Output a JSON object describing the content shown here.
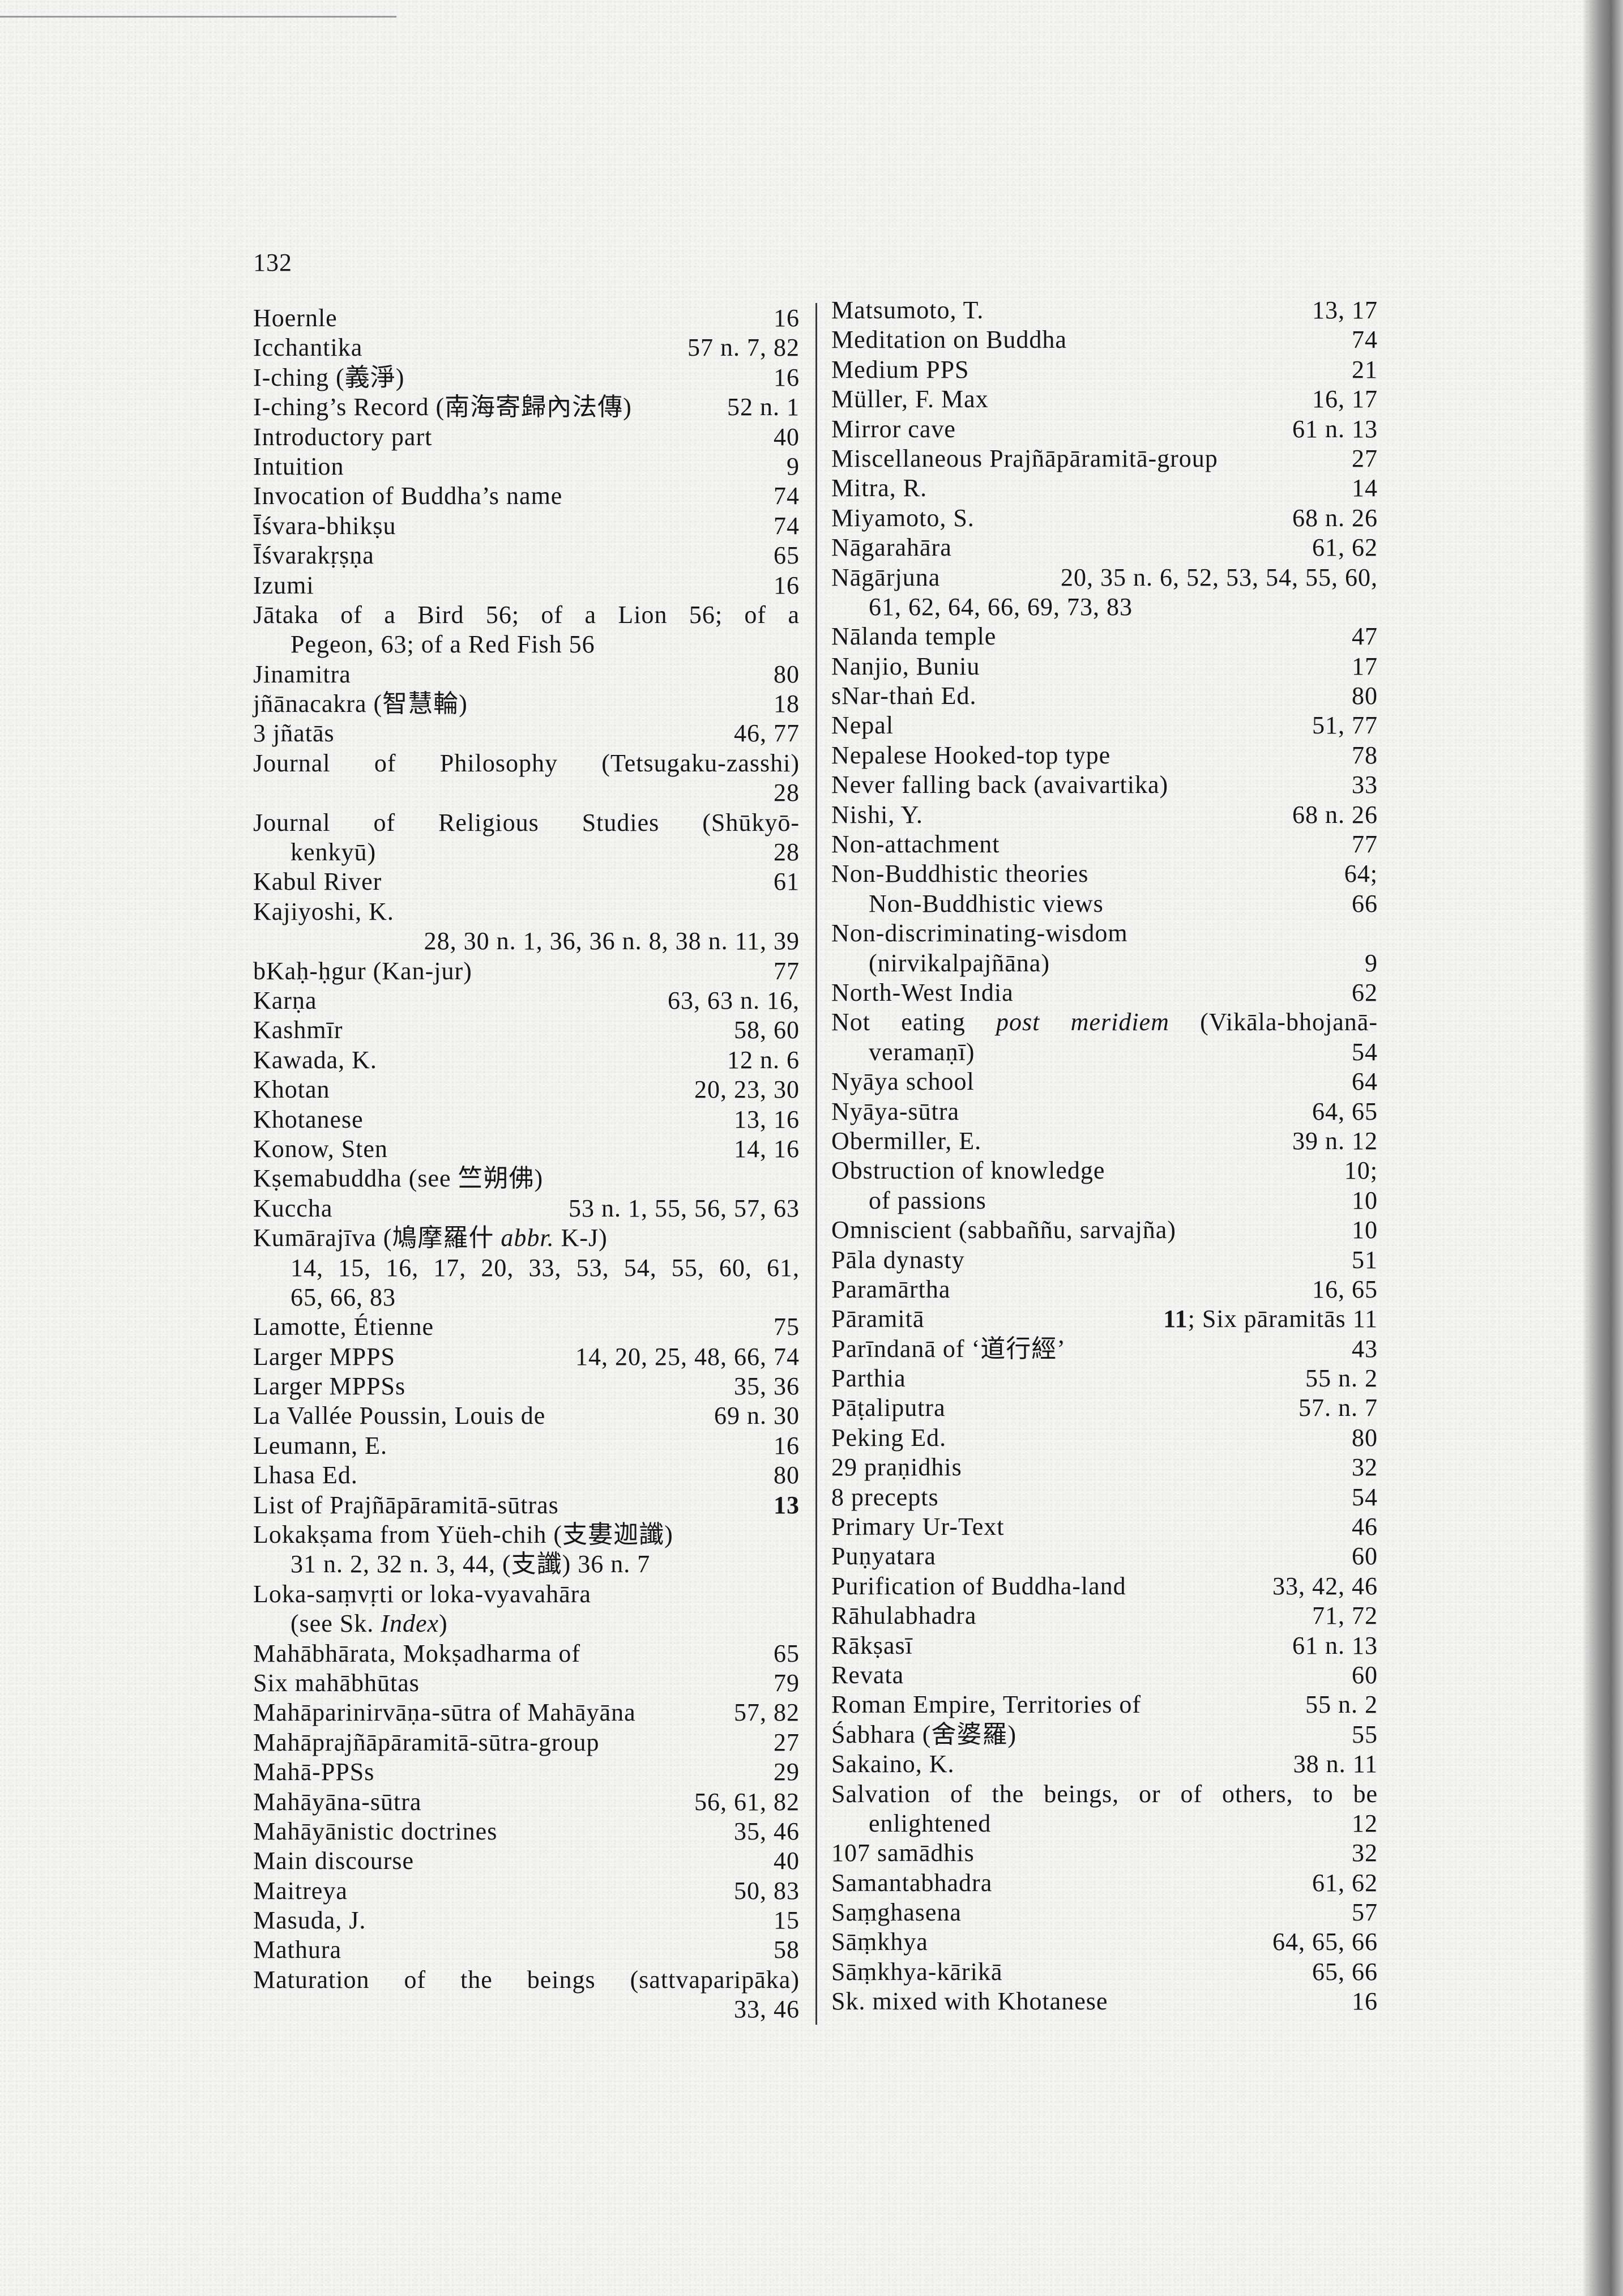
{
  "page_number": "132",
  "left_column": [
    {
      "t": "Hoernle",
      "p": "16"
    },
    {
      "t": "Icchantika",
      "p": "57 n. 7, 82"
    },
    {
      "t": "I-ching (義淨)",
      "p": "16"
    },
    {
      "t": "I-ching’s Record (南海寄歸內法傳)",
      "p": "52 n. 1"
    },
    {
      "t": "Introductory part",
      "p": "40"
    },
    {
      "t": "Intuition",
      "p": "9"
    },
    {
      "t": "Invocation of Buddha’s name",
      "p": "74"
    },
    {
      "t": "Īśvara-bhikṣu",
      "p": "74"
    },
    {
      "t": "Īśvarakṛṣṇa",
      "p": "65"
    },
    {
      "t": "Izumi",
      "p": "16"
    },
    {
      "t": "Jātaka of a Bird 56; of a Lion 56; of a",
      "j": 1
    },
    {
      "t": "Pegeon, 63; of a Red Fish 56",
      "ind": 1
    },
    {
      "t": "Jinamitra",
      "p": "80"
    },
    {
      "t": "jñānacakra (智慧輪)",
      "p": "18"
    },
    {
      "t": "3 jñatās",
      "p": "46, 77"
    },
    {
      "t": "Journal of Philosophy (Tetsugaku-zasshi)",
      "j": 1
    },
    {
      "t": "",
      "p": "28"
    },
    {
      "t": "Journal of Religious Studies (Shūkyō-",
      "j": 1
    },
    {
      "t": "kenkyū)",
      "p": "28",
      "ind": 1
    },
    {
      "t": "Kabul River",
      "p": "61"
    },
    {
      "t": "Kajiyoshi, K."
    },
    {
      "t": "",
      "p": "28, 30 n. 1, 36, 36 n. 8, 38 n. 11, 39"
    },
    {
      "t": "bKaḥ-ḥgur (Kan-jur)",
      "p": "77"
    },
    {
      "t": "Karṇa",
      "p": "63, 63 n. 16,"
    },
    {
      "t": "Kashmīr",
      "p": "58, 60"
    },
    {
      "t": "Kawada, K.",
      "p": "12 n. 6"
    },
    {
      "t": "Khotan",
      "p": "20, 23, 30"
    },
    {
      "t": "Khotanese",
      "p": "13, 16"
    },
    {
      "t": "Konow, Sten",
      "p": "14, 16"
    },
    {
      "t": "Kṣemabuddha (see 竺朔佛)"
    },
    {
      "t": "Kuccha",
      "p": "53 n. 1, 55, 56, 57, 63"
    },
    {
      "t": [
        "Kumārajīva (鳩摩羅什 ",
        {
          "i": "abbr."
        },
        " K-J)"
      ]
    },
    {
      "t": "14, 15, 16, 17, 20, 33, 53, 54, 55, 60, 61,",
      "ind": 1,
      "j": 1
    },
    {
      "t": "65, 66, 83",
      "ind": 1
    },
    {
      "t": "Lamotte, Étienne",
      "p": "75"
    },
    {
      "t": "Larger MPPS",
      "p": "14, 20, 25, 48, 66, 74"
    },
    {
      "t": "Larger MPPSs",
      "p": "35, 36"
    },
    {
      "t": "La Vallée Poussin, Louis de",
      "p": "69 n. 30"
    },
    {
      "t": "Leumann, E.",
      "p": "16"
    },
    {
      "t": "Lhasa Ed.",
      "p": "80"
    },
    {
      "t": "List of Prajñāpāramitā-sūtras",
      "p": [
        {
          "b": "13"
        }
      ]
    },
    {
      "t": "Lokakṣama from Yüeh-chih (支婁迦讖)"
    },
    {
      "t": "31 n. 2, 32 n. 3, 44, (支讖) 36 n. 7",
      "ind": 1
    },
    {
      "t": "Loka-saṃvṛti or loka-vyavahāra"
    },
    {
      "t": [
        "(see Sk. ",
        {
          "i": "Index"
        },
        ")"
      ],
      "ind": 1
    },
    {
      "t": "Mahābhārata, Mokṣadharma of",
      "p": "65"
    },
    {
      "t": "Six mahābhūtas",
      "p": "79"
    },
    {
      "t": "Mahāparinirvāṇa-sūtra of Mahāyāna",
      "p": "57, 82"
    },
    {
      "t": "Mahāprajñāpāramitā-sūtra-group",
      "p": "27"
    },
    {
      "t": "Mahā-PPSs",
      "p": "29"
    },
    {
      "t": "Mahāyāna-sūtra",
      "p": "56, 61, 82"
    },
    {
      "t": "Mahāyānistic doctrines",
      "p": "35, 46"
    },
    {
      "t": "Main discourse",
      "p": "40"
    },
    {
      "t": "Maitreya",
      "p": "50, 83"
    },
    {
      "t": "Masuda, J.",
      "p": "15"
    },
    {
      "t": "Mathura",
      "p": "58"
    },
    {
      "t": "Maturation of the beings (sattvaparipāka)",
      "j": 1
    },
    {
      "t": "",
      "p": "33, 46"
    }
  ],
  "right_column": [
    {
      "t": "Matsumoto, T.",
      "p": "13, 17"
    },
    {
      "t": "Meditation on Buddha",
      "p": "74"
    },
    {
      "t": "Medium PPS",
      "p": "21"
    },
    {
      "t": "Müller, F. Max",
      "p": "16, 17"
    },
    {
      "t": "Mirror cave",
      "p": "61 n. 13"
    },
    {
      "t": "Miscellaneous Prajñāpāramitā-group",
      "p": "27"
    },
    {
      "t": "Mitra, R.",
      "p": "14"
    },
    {
      "t": "Miyamoto, S.",
      "p": "68 n. 26"
    },
    {
      "t": "Nāgarahāra",
      "p": "61, 62"
    },
    {
      "t": "Nāgārjuna",
      "p": "20, 35 n. 6, 52, 53, 54, 55, 60,"
    },
    {
      "t": "61, 62, 64, 66, 69, 73, 83",
      "ind": 1
    },
    {
      "t": "Nālanda temple",
      "p": "47"
    },
    {
      "t": "Nanjio, Buniu",
      "p": "17"
    },
    {
      "t": "sNar-thaṅ Ed.",
      "p": "80"
    },
    {
      "t": "Nepal",
      "p": "51, 77"
    },
    {
      "t": "Nepalese Hooked-top type",
      "p": "78"
    },
    {
      "t": "Never falling back (avaivartika)",
      "p": "33"
    },
    {
      "t": "Nishi, Y.",
      "p": "68 n. 26"
    },
    {
      "t": "Non-attachment",
      "p": "77"
    },
    {
      "t": "Non-Buddhistic theories",
      "p": "64;"
    },
    {
      "t": "Non-Buddhistic views",
      "p": "66",
      "ind": 1
    },
    {
      "t": "Non-discriminating-wisdom"
    },
    {
      "t": "(nirvikalpajñāna)",
      "p": "9",
      "ind": 1
    },
    {
      "t": "North-West India",
      "p": "62"
    },
    {
      "t": [
        "Not eating ",
        {
          "i": "post meridiem"
        },
        " (Vikāla-bhojanā-"
      ],
      "j": 1
    },
    {
      "t": "veramaṇī)",
      "p": "54",
      "ind": 1
    },
    {
      "t": "Nyāya school",
      "p": "64"
    },
    {
      "t": "Nyāya-sūtra",
      "p": "64, 65"
    },
    {
      "t": "Obermiller, E.",
      "p": "39 n. 12"
    },
    {
      "t": "Obstruction of knowledge",
      "p": "10;"
    },
    {
      "t": "of passions",
      "p": "10",
      "ind": 1
    },
    {
      "t": "Omniscient (sabbaññu, sarvajña)",
      "p": "10"
    },
    {
      "t": "Pāla dynasty",
      "p": "51"
    },
    {
      "t": "Paramārtha",
      "p": "16, 65"
    },
    {
      "t": "Pāramitā",
      "p": [
        {
          "b": "11"
        },
        "; Six pāramitās 11"
      ]
    },
    {
      "t": "Parīndanā of ‘道行經’",
      "p": "43"
    },
    {
      "t": "Parthia",
      "p": "55 n. 2"
    },
    {
      "t": "Pāṭaliputra",
      "p": "57. n. 7"
    },
    {
      "t": "Peking Ed.",
      "p": "80"
    },
    {
      "t": "29 praṇidhis",
      "p": "32"
    },
    {
      "t": "8 precepts",
      "p": "54"
    },
    {
      "t": "Primary Ur-Text",
      "p": "46"
    },
    {
      "t": "Puṇyatara",
      "p": "60"
    },
    {
      "t": "Purification of Buddha-land",
      "p": "33, 42, 46"
    },
    {
      "t": "Rāhulabhadra",
      "p": "71, 72"
    },
    {
      "t": "Rākṣasī",
      "p": "61 n. 13"
    },
    {
      "t": "Revata",
      "p": "60"
    },
    {
      "t": "Roman Empire, Territories of",
      "p": "55 n. 2"
    },
    {
      "t": "Śabhara (舍婆羅)",
      "p": "55"
    },
    {
      "t": "Sakaino, K.",
      "p": "38 n. 11"
    },
    {
      "t": "Salvation of the beings, or of others, to be",
      "j": 1
    },
    {
      "t": "enlightened",
      "p": "12",
      "ind": 1
    },
    {
      "t": "107 samādhis",
      "p": "32"
    },
    {
      "t": "Samantabhadra",
      "p": "61, 62"
    },
    {
      "t": "Saṃghasena",
      "p": "57"
    },
    {
      "t": "Sāṃkhya",
      "p": "64, 65, 66"
    },
    {
      "t": "Sāṃkhya-kārikā",
      "p": "65, 66"
    },
    {
      "t": "Sk. mixed with Khotanese",
      "p": "16"
    }
  ]
}
